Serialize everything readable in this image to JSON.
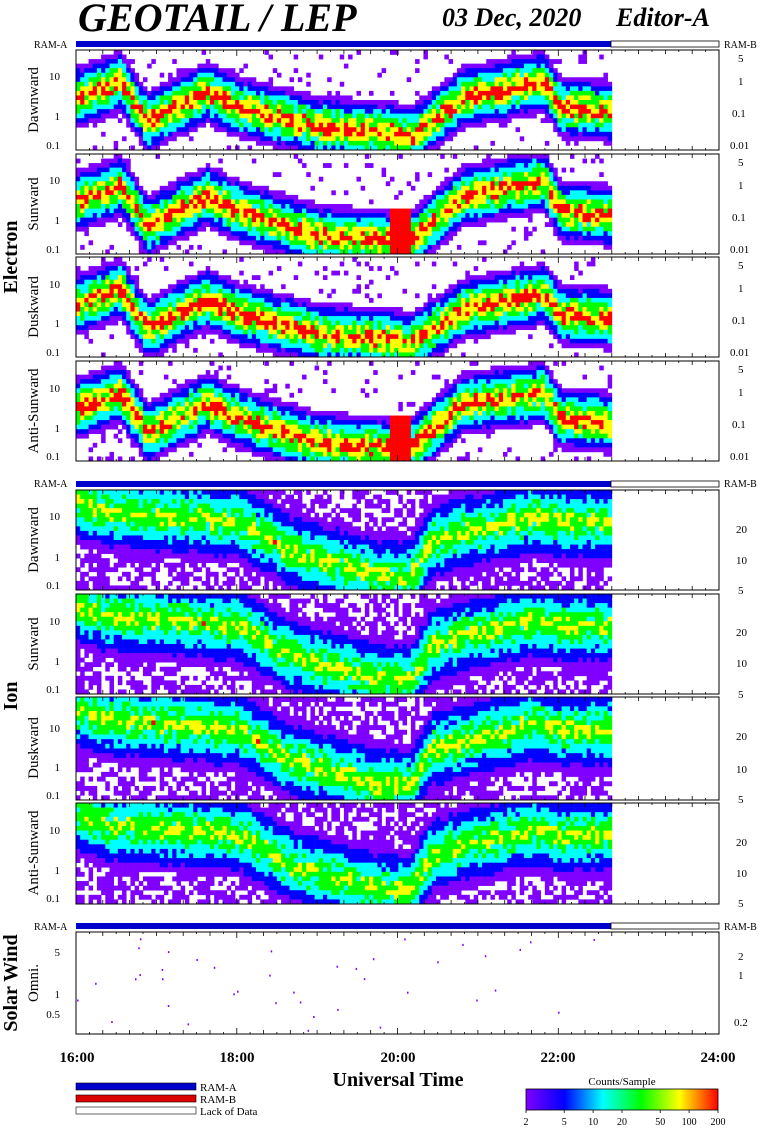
{
  "header": {
    "title": "GEOTAIL / LEP",
    "date": "03 Dec, 2020",
    "editor": "Editor-A"
  },
  "colors": {
    "ram_a": "#0000cc",
    "ram_b": "#dd0000",
    "lack_of_data": "#ffffff",
    "colorbar": [
      "#7f00ff",
      "#0000ff",
      "#00ffff",
      "#00ff00",
      "#ffff00",
      "#ff0000"
    ]
  },
  "chart_data": {
    "type": "heatmap",
    "x_axis": {
      "label": "Universal Time",
      "range": [
        "16:00",
        "24:00"
      ],
      "major_ticks": [
        "16:00",
        "18:00",
        "20:00",
        "22:00",
        "24:00"
      ]
    },
    "data_coverage": {
      "start": "16:00",
      "end": "22:40"
    },
    "groups": [
      {
        "name": "Electron",
        "mode_bar": {
          "left": "RAM-A",
          "right": "RAM-B"
        },
        "panels": [
          {
            "name": "Dawnward",
            "left_ticks": [
              "10",
              "1",
              "0.1"
            ],
            "right_ticks": [
              "5",
              "1",
              "0.1",
              "0.01"
            ],
            "profile": [
              [
                0,
                0.45
              ],
              [
                0.08,
                0.3
              ],
              [
                0.13,
                0.7
              ],
              [
                0.24,
                0.4
              ],
              [
                0.3,
                0.55
              ],
              [
                0.45,
                0.75
              ],
              [
                0.58,
                0.8
              ],
              [
                0.62,
                0.85
              ],
              [
                0.72,
                0.45
              ],
              [
                0.87,
                0.3
              ],
              [
                0.9,
                0.55
              ],
              [
                1,
                0.6
              ]
            ]
          },
          {
            "name": "Sunward",
            "left_ticks": [
              "10",
              "1",
              "0.1"
            ],
            "right_ticks": [
              "5",
              "1",
              "0.1",
              "0.01"
            ],
            "profile": [
              [
                0,
                0.45
              ],
              [
                0.08,
                0.3
              ],
              [
                0.13,
                0.7
              ],
              [
                0.24,
                0.4
              ],
              [
                0.3,
                0.55
              ],
              [
                0.45,
                0.8
              ],
              [
                0.58,
                0.85
              ],
              [
                0.62,
                0.85
              ],
              [
                0.72,
                0.4
              ],
              [
                0.87,
                0.25
              ],
              [
                0.9,
                0.55
              ],
              [
                1,
                0.6
              ]
            ]
          },
          {
            "name": "Duskward",
            "left_ticks": [
              "10",
              "1",
              "0.1"
            ],
            "right_ticks": [
              "5",
              "1",
              "0.1",
              "0.01"
            ],
            "profile": [
              [
                0,
                0.45
              ],
              [
                0.08,
                0.3
              ],
              [
                0.13,
                0.7
              ],
              [
                0.24,
                0.4
              ],
              [
                0.3,
                0.55
              ],
              [
                0.45,
                0.75
              ],
              [
                0.58,
                0.8
              ],
              [
                0.62,
                0.85
              ],
              [
                0.72,
                0.5
              ],
              [
                0.87,
                0.35
              ],
              [
                0.9,
                0.55
              ],
              [
                1,
                0.6
              ]
            ]
          },
          {
            "name": "Anti-Sunward",
            "left_ticks": [
              "10",
              "1",
              "0.1"
            ],
            "right_ticks": [
              "5",
              "1",
              "0.1",
              "0.01"
            ],
            "profile": [
              [
                0,
                0.45
              ],
              [
                0.08,
                0.3
              ],
              [
                0.13,
                0.7
              ],
              [
                0.24,
                0.4
              ],
              [
                0.3,
                0.55
              ],
              [
                0.45,
                0.8
              ],
              [
                0.58,
                0.85
              ],
              [
                0.62,
                0.85
              ],
              [
                0.72,
                0.4
              ],
              [
                0.87,
                0.3
              ],
              [
                0.9,
                0.55
              ],
              [
                1,
                0.6
              ]
            ]
          }
        ]
      },
      {
        "name": "Ion",
        "mode_bar": {
          "left": "RAM-A",
          "right": "RAM-B"
        },
        "panels": [
          {
            "name": "Dawnward",
            "left_ticks": [
              "10",
              "1",
              "0.1"
            ],
            "right_ticks": [
              "20",
              "10",
              "5"
            ],
            "profile": [
              [
                0,
                0.1
              ],
              [
                0.05,
                0.2
              ],
              [
                0.2,
                0.25
              ],
              [
                0.3,
                0.3
              ],
              [
                0.4,
                0.6
              ],
              [
                0.55,
                0.82
              ],
              [
                0.62,
                0.85
              ],
              [
                0.66,
                0.5
              ],
              [
                0.72,
                0.4
              ],
              [
                0.85,
                0.25
              ],
              [
                0.9,
                0.3
              ],
              [
                1,
                0.3
              ]
            ]
          },
          {
            "name": "Sunward",
            "left_ticks": [
              "10",
              "1",
              "0.1"
            ],
            "right_ticks": [
              "20",
              "10",
              "5"
            ],
            "profile": [
              [
                0,
                0.1
              ],
              [
                0.05,
                0.2
              ],
              [
                0.2,
                0.25
              ],
              [
                0.3,
                0.3
              ],
              [
                0.4,
                0.6
              ],
              [
                0.55,
                0.82
              ],
              [
                0.62,
                0.85
              ],
              [
                0.66,
                0.5
              ],
              [
                0.72,
                0.4
              ],
              [
                0.85,
                0.25
              ],
              [
                0.9,
                0.3
              ],
              [
                1,
                0.3
              ]
            ]
          },
          {
            "name": "Duskward",
            "left_ticks": [
              "10",
              "1",
              "0.1"
            ],
            "right_ticks": [
              "20",
              "10",
              "5"
            ],
            "profile": [
              [
                0,
                0.1
              ],
              [
                0.05,
                0.2
              ],
              [
                0.2,
                0.25
              ],
              [
                0.3,
                0.3
              ],
              [
                0.4,
                0.6
              ],
              [
                0.55,
                0.82
              ],
              [
                0.62,
                0.85
              ],
              [
                0.66,
                0.5
              ],
              [
                0.72,
                0.4
              ],
              [
                0.85,
                0.25
              ],
              [
                0.9,
                0.3
              ],
              [
                1,
                0.3
              ]
            ]
          },
          {
            "name": "Anti-Sunward",
            "left_ticks": [
              "10",
              "1",
              "0.1"
            ],
            "right_ticks": [
              "20",
              "10",
              "5"
            ],
            "profile": [
              [
                0,
                0.1
              ],
              [
                0.05,
                0.2
              ],
              [
                0.2,
                0.25
              ],
              [
                0.3,
                0.3
              ],
              [
                0.4,
                0.6
              ],
              [
                0.55,
                0.82
              ],
              [
                0.62,
                0.85
              ],
              [
                0.66,
                0.5
              ],
              [
                0.72,
                0.4
              ],
              [
                0.85,
                0.25
              ],
              [
                0.9,
                0.3
              ],
              [
                1,
                0.3
              ]
            ]
          }
        ]
      },
      {
        "name": "Solar Wind",
        "mode_bar": {
          "left": "RAM-A",
          "right": "RAM-B"
        },
        "panels": [
          {
            "name": "Omni.",
            "left_ticks": [
              "5",
              "1",
              "0.5"
            ],
            "right_ticks": [
              "2",
              "1",
              "0.2"
            ],
            "sparse": true
          }
        ]
      }
    ],
    "colorbar": {
      "label": "Counts/Sample",
      "ticks": [
        "2",
        "5",
        "10",
        "20",
        "50",
        "100",
        "200"
      ],
      "scale": "log"
    },
    "legend": {
      "position": "bottom-left",
      "entries": [
        "RAM-A",
        "RAM-B",
        "Lack of Data"
      ]
    }
  }
}
